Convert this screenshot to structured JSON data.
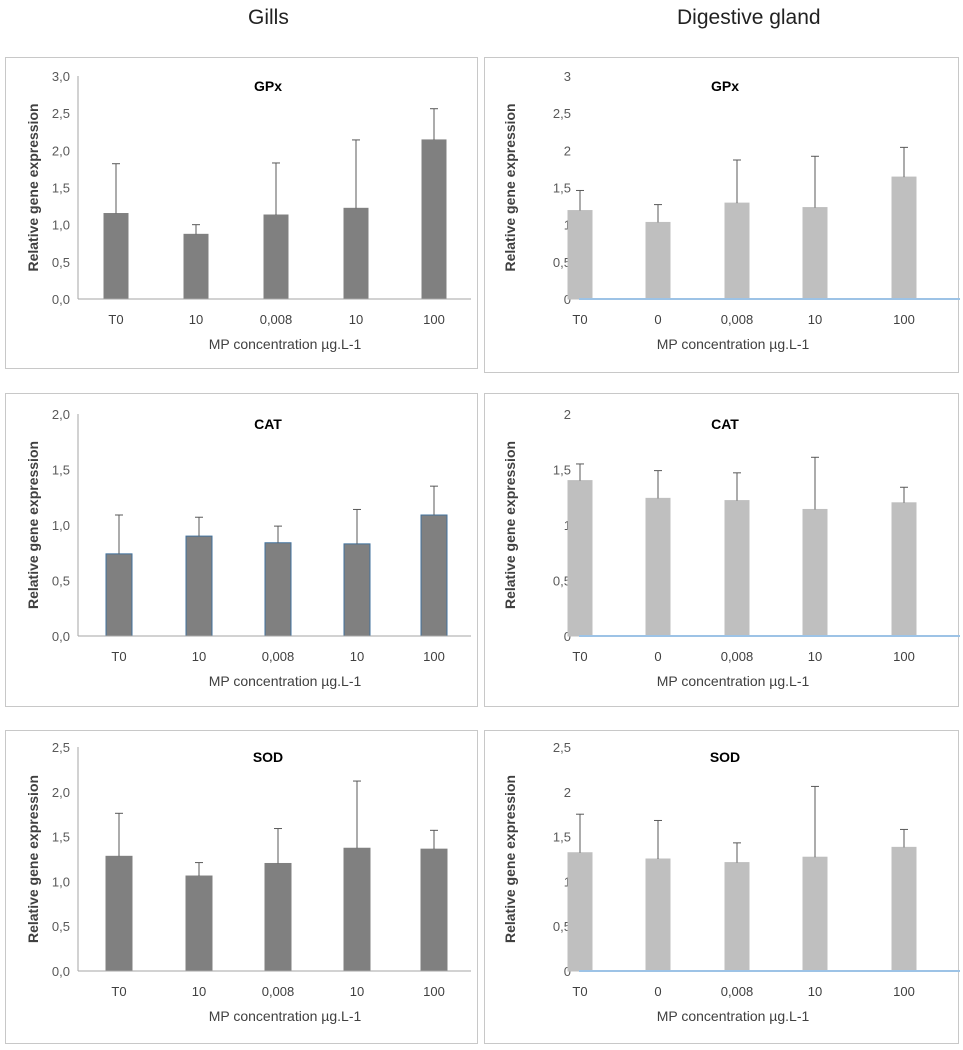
{
  "figure": {
    "left_heading": "Gills",
    "right_heading": "Digestive gland"
  },
  "chart_data": [
    {
      "type": "bar",
      "tissue": "Gills",
      "title": "GPx",
      "categories": [
        "T0",
        "10",
        "0,008",
        "10",
        "100"
      ],
      "values": [
        1.15,
        0.87,
        1.13,
        1.22,
        2.14
      ],
      "errors": [
        0.67,
        0.13,
        0.7,
        0.92,
        0.42
      ],
      "ylim": [
        0,
        3.0
      ],
      "yticks": [
        "0,0",
        "0,5",
        "1,0",
        "1,5",
        "2,0",
        "2,5",
        "3,0"
      ],
      "ytick_values": [
        0,
        0.5,
        1.0,
        1.5,
        2.0,
        2.5,
        3.0
      ],
      "xlabel": "MP concentration µg.L-1",
      "ylabel": "Relative gene expression",
      "bar_color": "#808080",
      "bar_stroke": "#808080",
      "axis_color": "#a6a6a6"
    },
    {
      "type": "bar",
      "tissue": "Digestive gland",
      "title": "GPx",
      "categories": [
        "T0",
        "0",
        "0,008",
        "10",
        "100"
      ],
      "values": [
        1.19,
        1.03,
        1.29,
        1.23,
        1.64
      ],
      "errors": [
        0.27,
        0.24,
        0.58,
        0.69,
        0.4
      ],
      "ylim": [
        0,
        3
      ],
      "yticks": [
        "0",
        "0,5",
        "1",
        "1,5",
        "2",
        "2,5",
        "3"
      ],
      "ytick_values": [
        0,
        0.5,
        1,
        1.5,
        2,
        2.5,
        3
      ],
      "xlabel": "MP concentration µg.L-1",
      "ylabel": "Relative gene expression",
      "bar_color": "#bfbfbf",
      "bar_stroke": "#bfbfbf",
      "axis_color": "#9dc3e6"
    },
    {
      "type": "bar",
      "tissue": "Gills",
      "title": "CAT",
      "categories": [
        "T0",
        "10",
        "0,008",
        "10",
        "100"
      ],
      "values": [
        0.74,
        0.9,
        0.84,
        0.83,
        1.09
      ],
      "errors": [
        0.35,
        0.17,
        0.15,
        0.31,
        0.26
      ],
      "ylim": [
        0,
        2.0
      ],
      "yticks": [
        "0,0",
        "0,5",
        "1,0",
        "1,5",
        "2,0"
      ],
      "ytick_values": [
        0,
        0.5,
        1.0,
        1.5,
        2.0
      ],
      "xlabel": "MP concentration µg.L-1",
      "ylabel": "Relative gene expression",
      "bar_color": "#808080",
      "bar_stroke": "#41719c",
      "axis_color": "#a6a6a6"
    },
    {
      "type": "bar",
      "tissue": "Digestive gland",
      "title": "CAT",
      "categories": [
        "T0",
        "0",
        "0,008",
        "10",
        "100"
      ],
      "values": [
        1.4,
        1.24,
        1.22,
        1.14,
        1.2
      ],
      "errors": [
        0.15,
        0.25,
        0.25,
        0.47,
        0.14
      ],
      "ylim": [
        0,
        2
      ],
      "yticks": [
        "0",
        "0,5",
        "1",
        "1,5",
        "2"
      ],
      "ytick_values": [
        0,
        0.5,
        1,
        1.5,
        2
      ],
      "xlabel": "MP concentration µg.L-1",
      "ylabel": "Relative gene expression",
      "bar_color": "#bfbfbf",
      "bar_stroke": "#bfbfbf",
      "axis_color": "#9dc3e6"
    },
    {
      "type": "bar",
      "tissue": "Gills",
      "title": "SOD",
      "categories": [
        "T0",
        "10",
        "0,008",
        "10",
        "100"
      ],
      "values": [
        1.28,
        1.06,
        1.2,
        1.37,
        1.36
      ],
      "errors": [
        0.48,
        0.15,
        0.39,
        0.75,
        0.21
      ],
      "ylim": [
        0,
        2.5
      ],
      "yticks": [
        "0,0",
        "0,5",
        "1,0",
        "1,5",
        "2,0",
        "2,5"
      ],
      "ytick_values": [
        0,
        0.5,
        1.0,
        1.5,
        2.0,
        2.5
      ],
      "xlabel": "MP concentration µg.L-1",
      "ylabel": "Relative gene expression",
      "bar_color": "#808080",
      "bar_stroke": "#808080",
      "axis_color": "#a6a6a6"
    },
    {
      "type": "bar",
      "tissue": "Digestive gland",
      "title": "SOD",
      "categories": [
        "T0",
        "0",
        "0,008",
        "10",
        "100"
      ],
      "values": [
        1.32,
        1.25,
        1.21,
        1.27,
        1.38
      ],
      "errors": [
        0.43,
        0.43,
        0.22,
        0.79,
        0.2
      ],
      "ylim": [
        0,
        2.5
      ],
      "yticks": [
        "0",
        "0,5",
        "1",
        "1,5",
        "2",
        "2,5"
      ],
      "ytick_values": [
        0,
        0.5,
        1,
        1.5,
        2,
        2.5
      ],
      "xlabel": "MP concentration µg.L-1",
      "ylabel": "Relative gene expression",
      "bar_color": "#bfbfbf",
      "bar_stroke": "#bfbfbf",
      "axis_color": "#9dc3e6"
    }
  ]
}
